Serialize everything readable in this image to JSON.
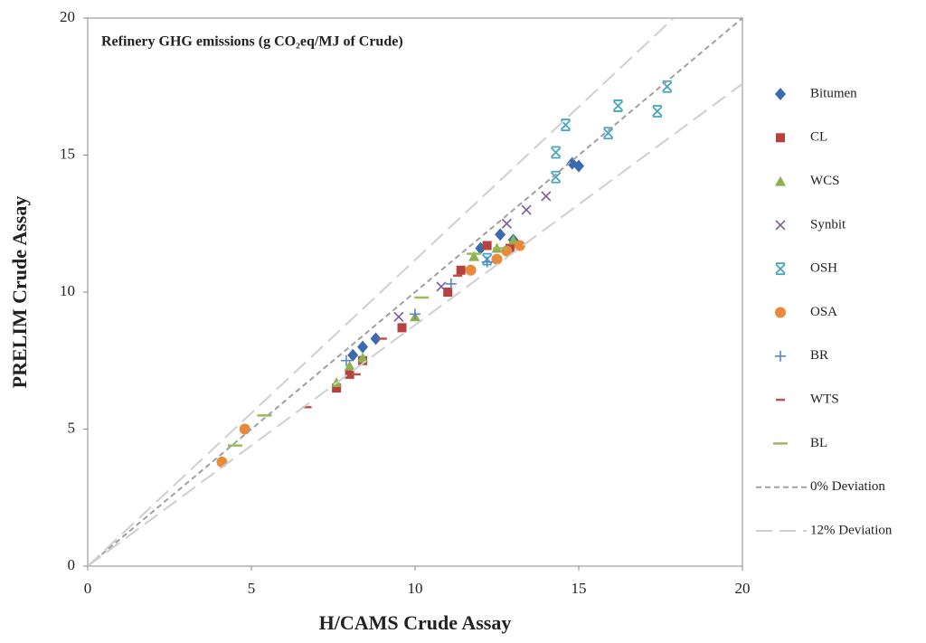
{
  "chart_data": {
    "type": "scatter",
    "title": "Refinery GHG emissions (g CO₂eq/MJ of Crude)",
    "x_label": "H/CAMS Crude Assay",
    "y_label": "PRELIM Crude Assay",
    "xlim": [
      0,
      20
    ],
    "ylim": [
      0,
      20
    ],
    "xticks": [
      0,
      5,
      10,
      15,
      20
    ],
    "yticks": [
      0,
      5,
      10,
      15,
      20
    ],
    "grid": false,
    "legend": "right",
    "series": [
      {
        "name": "Bitumen",
        "color": "#3a6ab0",
        "marker": "diamond",
        "x": [
          8.1,
          8.4,
          8.8,
          12.0,
          12.6,
          14.8,
          15.0,
          13.0
        ],
        "values": [
          7.7,
          8.0,
          8.3,
          11.6,
          12.1,
          14.7,
          14.6,
          11.9
        ]
      },
      {
        "name": "CL",
        "color": "#b7413e",
        "marker": "square",
        "x": [
          7.6,
          8.0,
          8.4,
          9.6,
          11.0,
          11.4,
          12.2,
          12.9
        ],
        "values": [
          6.5,
          7.0,
          7.5,
          8.7,
          10.0,
          10.8,
          11.7,
          11.6
        ]
      },
      {
        "name": "WCS",
        "color": "#8fb04e",
        "marker": "triangle",
        "x": [
          7.6,
          8.0,
          8.4,
          10.0,
          11.8,
          12.5,
          13.0
        ],
        "values": [
          6.7,
          7.3,
          7.6,
          9.1,
          11.3,
          11.6,
          11.9
        ]
      },
      {
        "name": "Synbit",
        "color": "#7a5c9a",
        "marker": "x",
        "x": [
          9.5,
          10.8,
          12.8,
          13.4,
          14.0
        ],
        "values": [
          9.1,
          10.2,
          12.5,
          13.0,
          13.5
        ]
      },
      {
        "name": "OSH",
        "color": "#47a3bf",
        "marker": "star",
        "x": [
          12.2,
          14.3,
          14.3,
          14.6,
          15.9,
          16.2,
          17.4,
          17.7
        ],
        "values": [
          11.2,
          14.2,
          15.1,
          16.1,
          15.8,
          16.8,
          16.6,
          17.5
        ]
      },
      {
        "name": "OSA",
        "color": "#e8893b",
        "marker": "circle",
        "x": [
          4.1,
          4.8,
          11.7,
          12.5,
          12.8,
          13.2
        ],
        "values": [
          3.8,
          5.0,
          10.8,
          11.2,
          11.5,
          11.7
        ]
      },
      {
        "name": "BR",
        "color": "#5b87c0",
        "marker": "plus",
        "x": [
          7.9,
          10.0,
          11.1,
          12.2
        ],
        "values": [
          7.5,
          9.2,
          10.3,
          11.1
        ]
      },
      {
        "name": "WTS",
        "color": "#c0504d",
        "marker": "dash",
        "x": [
          6.7,
          8.2,
          9.0,
          11.3
        ],
        "values": [
          5.8,
          7.0,
          8.3,
          10.6
        ]
      },
      {
        "name": "BL",
        "color": "#9bbb59",
        "marker": "longdash",
        "x": [
          4.5,
          5.4,
          10.2,
          11.8,
          12.6
        ],
        "values": [
          4.4,
          5.5,
          9.8,
          11.4,
          11.6
        ]
      },
      {
        "name": "0% Deviation",
        "color": "#a0a0a0",
        "line": "dash",
        "x": [
          0,
          20
        ],
        "values": [
          0,
          20
        ]
      },
      {
        "name": "12% Deviation",
        "color": "#cfcfcf",
        "line": "longdash",
        "x": [
          0,
          17.9,
          null,
          0,
          20
        ],
        "values": [
          0,
          20,
          null,
          0,
          17.6
        ]
      }
    ]
  }
}
